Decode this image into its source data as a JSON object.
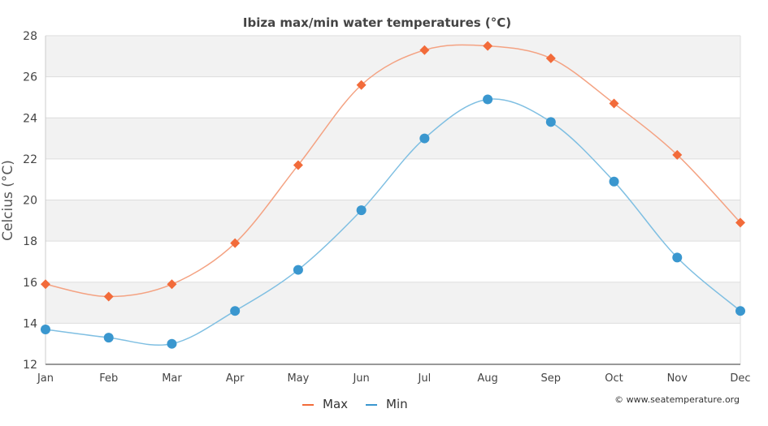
{
  "chart_data": {
    "type": "line",
    "title": "Ibiza max/min water temperatures (°C)",
    "xlabel": "",
    "ylabel": "Celcius (°C)",
    "categories": [
      "Jan",
      "Feb",
      "Mar",
      "Apr",
      "May",
      "Jun",
      "Jul",
      "Aug",
      "Sep",
      "Oct",
      "Nov",
      "Dec"
    ],
    "ylim": [
      12,
      28
    ],
    "yticks": [
      12,
      14,
      16,
      18,
      20,
      22,
      24,
      26,
      28
    ],
    "series": [
      {
        "name": "Max",
        "color": "#f26b3a",
        "marker": "diamond",
        "line_color": "#f4a282",
        "values": [
          15.9,
          15.3,
          15.9,
          17.9,
          21.7,
          25.6,
          27.3,
          27.5,
          26.9,
          24.7,
          22.2,
          18.9
        ]
      },
      {
        "name": "Min",
        "color": "#3a97cf",
        "marker": "circle",
        "line_color": "#7fbfe2",
        "values": [
          13.7,
          13.3,
          13.0,
          14.6,
          16.6,
          19.5,
          23.0,
          24.9,
          23.8,
          20.9,
          17.2,
          14.6
        ]
      }
    ],
    "grid": true,
    "band_color": "#f2f2f2",
    "legend_position": "bottom-center",
    "credit": "© www.seatemperature.org"
  }
}
